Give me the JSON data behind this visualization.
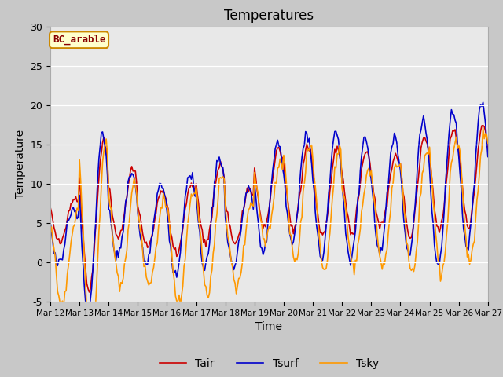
{
  "title": "Temperatures",
  "xlabel": "Time",
  "ylabel": "Temperature",
  "ylim": [
    -5,
    30
  ],
  "xlim": [
    0,
    360
  ],
  "plot_bg_color": "#e8e8e8",
  "fig_bg_color": "#c8c8c8",
  "tair_color": "#cc0000",
  "tsurf_color": "#0000cc",
  "tsky_color": "#ff9900",
  "line_width": 1.2,
  "legend_labels": [
    "Tair",
    "Tsurf",
    "Tsky"
  ],
  "subtitle_box": "BC_arable",
  "subtitle_box_color": "#ffffcc",
  "subtitle_box_edge_color": "#cc8800",
  "subtitle_text_color": "#880000",
  "x_tick_labels": [
    "Mar 12",
    "Mar 13",
    "Mar 14",
    "Mar 15",
    "Mar 16",
    "Mar 17",
    "Mar 18",
    "Mar 19",
    "Mar 20",
    "Mar 21",
    "Mar 22",
    "Mar 23",
    "Mar 24",
    "Mar 25",
    "Mar 26",
    "Mar 27"
  ],
  "x_tick_positions": [
    0,
    24,
    48,
    72,
    96,
    120,
    144,
    168,
    192,
    216,
    240,
    264,
    288,
    312,
    336,
    360
  ],
  "y_tick_labels": [
    "-5",
    "0",
    "5",
    "10",
    "15",
    "20",
    "25",
    "30"
  ],
  "y_tick_positions": [
    -5,
    0,
    5,
    10,
    15,
    20,
    25,
    30
  ]
}
